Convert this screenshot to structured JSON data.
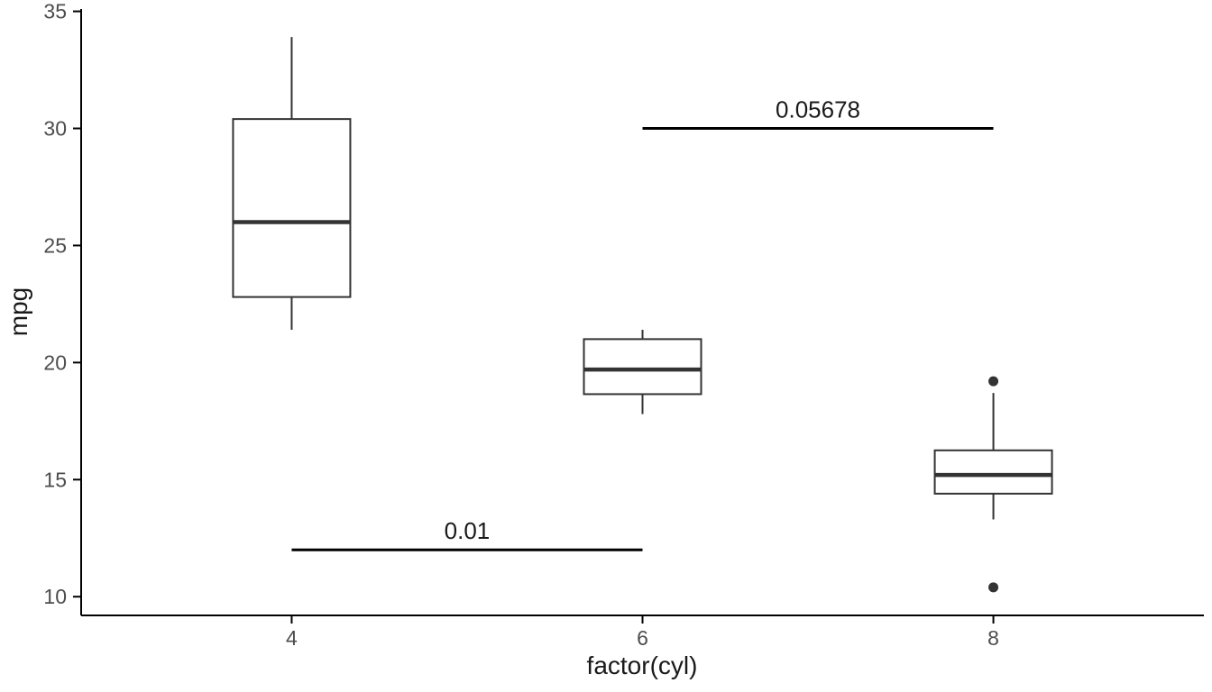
{
  "colors": {
    "background": "#ffffff",
    "axis_line": "#000000",
    "tick_label": "#4d4d4d",
    "box_stroke": "#333333",
    "box_fill": "#ffffff",
    "outlier": "#333333",
    "annotation_line": "#000000",
    "annotation_text": "#1a1a1a"
  },
  "chart_data": {
    "type": "boxplot",
    "title": "",
    "xlabel": "factor(cyl)",
    "ylabel": "mpg",
    "categories": [
      "4",
      "6",
      "8"
    ],
    "ylim": [
      9.2,
      35.1
    ],
    "yticks": [
      10,
      15,
      20,
      25,
      30,
      35
    ],
    "grid": false,
    "legend": "none",
    "boxes": [
      {
        "category": "4",
        "whisker_low": 21.4,
        "q1": 22.8,
        "median": 26.0,
        "q3": 30.4,
        "whisker_high": 33.9,
        "outliers": []
      },
      {
        "category": "6",
        "whisker_low": 17.8,
        "q1": 18.65,
        "median": 19.7,
        "q3": 21.0,
        "whisker_high": 21.4,
        "outliers": []
      },
      {
        "category": "8",
        "whisker_low": 13.3,
        "q1": 14.4,
        "median": 15.2,
        "q3": 16.25,
        "whisker_high": 18.7,
        "outliers": [
          10.4,
          19.2
        ]
      }
    ],
    "annotations": [
      {
        "label": "0.01",
        "from": "4",
        "to": "6",
        "y": 12
      },
      {
        "label": "0.05678",
        "from": "6",
        "to": "8",
        "y": 30
      }
    ]
  }
}
